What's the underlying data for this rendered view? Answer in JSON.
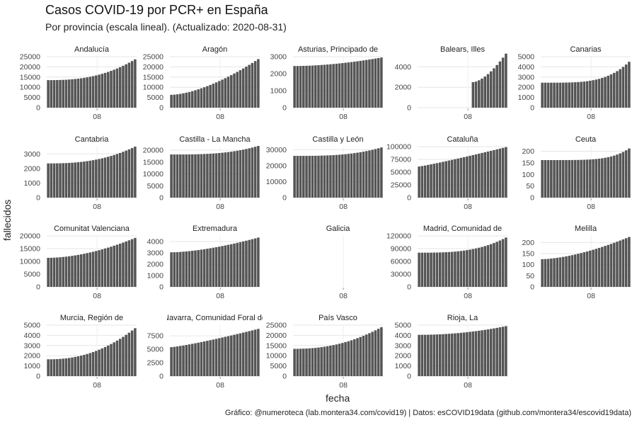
{
  "title": "Casos COVID-19 por PCR+ en España",
  "subtitle": "Por provincia (escala lineal). (Actualizado: 2020-08-31)",
  "caption": "Gráfico: @numeroteca (lab.montera34.com/covid19) | Datos: esCOVID19data (github.com/montera34/escovid19data)",
  "chart_data": {
    "type": "bar",
    "xlabel": "fecha",
    "ylabel": "fallecidos",
    "x_tick_label": "08",
    "bar_color": "#555555",
    "grid": true,
    "panels": [
      {
        "name": "Andalucía",
        "yticks": [
          0,
          5000,
          10000,
          15000,
          20000,
          25000
        ],
        "ylim": [
          0,
          25000
        ],
        "start": 13500,
        "end": 23700,
        "curve": 2.5,
        "empty_days": 0
      },
      {
        "name": "Aragón",
        "yticks": [
          0,
          5000,
          10000,
          15000,
          20000,
          25000
        ],
        "ylim": [
          0,
          25000
        ],
        "start": 6300,
        "end": 23800,
        "curve": 1.6,
        "empty_days": 0
      },
      {
        "name": "Asturias, Principado de",
        "yticks": [
          0,
          1000,
          2000,
          3000
        ],
        "ylim": [
          0,
          3000
        ],
        "start": 2450,
        "end": 2950,
        "curve": 1.8,
        "empty_days": 0
      },
      {
        "name": "Balears, Illes",
        "yticks": [
          0,
          2000,
          4000
        ],
        "ylim": [
          0,
          5000
        ],
        "start": 2500,
        "end": 5300,
        "curve": 1.6,
        "empty_days": 18
      },
      {
        "name": "Canarias",
        "yticks": [
          0,
          1000,
          2000,
          3000,
          4000,
          5000
        ],
        "ylim": [
          0,
          5000
        ],
        "start": 2450,
        "end": 4500,
        "curve": 4.0,
        "empty_days": 0
      },
      {
        "name": "Cantabria",
        "yticks": [
          0,
          1000,
          2000,
          3000
        ],
        "ylim": [
          0,
          3500
        ],
        "start": 2350,
        "end": 3500,
        "curve": 2.5,
        "empty_days": 0
      },
      {
        "name": "Castilla - La Mancha",
        "yticks": [
          0,
          5000,
          10000,
          15000,
          20000
        ],
        "ylim": [
          0,
          21500
        ],
        "start": 18200,
        "end": 21800,
        "curve": 3.0,
        "empty_days": 0
      },
      {
        "name": "Castilla y León",
        "yticks": [
          0,
          10000,
          20000,
          30000
        ],
        "ylim": [
          0,
          32000
        ],
        "start": 26200,
        "end": 31500,
        "curve": 3.0,
        "empty_days": 0
      },
      {
        "name": "Cataluña",
        "yticks": [
          0,
          25000,
          50000,
          75000,
          100000
        ],
        "ylim": [
          0,
          100000
        ],
        "start": 61000,
        "end": 99000,
        "curve": 1.1,
        "empty_days": 0
      },
      {
        "name": "Ceuta",
        "yticks": [
          0,
          50,
          100,
          150,
          200
        ],
        "ylim": [
          0,
          220
        ],
        "start": 162,
        "end": 212,
        "curve": 5.0,
        "empty_days": 0
      },
      {
        "name": "Comunitat Valenciana",
        "yticks": [
          0,
          5000,
          10000,
          15000,
          20000
        ],
        "ylim": [
          0,
          20000
        ],
        "start": 11400,
        "end": 19200,
        "curve": 1.8,
        "empty_days": 0
      },
      {
        "name": "Extremadura",
        "yticks": [
          0,
          1000,
          2000,
          3000,
          4000
        ],
        "ylim": [
          0,
          4500
        ],
        "start": 3050,
        "end": 4350,
        "curve": 1.6,
        "empty_days": 0
      },
      {
        "name": "Galicia",
        "yticks": [],
        "ylim": [
          0,
          1
        ],
        "start": 0,
        "end": 0,
        "curve": 1,
        "empty_days": 30
      },
      {
        "name": "Madrid, Comunidad de",
        "yticks": [
          0,
          30000,
          60000,
          90000,
          120000
        ],
        "ylim": [
          0,
          120000
        ],
        "start": 80500,
        "end": 116000,
        "curve": 3.0,
        "empty_days": 0
      },
      {
        "name": "Melilla",
        "yticks": [
          0,
          50,
          100,
          150,
          200
        ],
        "ylim": [
          0,
          230
        ],
        "start": 125,
        "end": 225,
        "curve": 1.6,
        "empty_days": 0
      },
      {
        "name": "Murcia, Región de",
        "yticks": [
          0,
          1000,
          2000,
          3000,
          4000,
          5000
        ],
        "ylim": [
          0,
          5000
        ],
        "start": 1650,
        "end": 4700,
        "curve": 2.2,
        "empty_days": 0
      },
      {
        "name": "Navarra, Comunidad Foral de",
        "yticks": [
          0,
          2500,
          5000,
          7500
        ],
        "ylim": [
          0,
          9500
        ],
        "start": 5400,
        "end": 8800,
        "curve": 1.2,
        "empty_days": 0
      },
      {
        "name": "País Vasco",
        "yticks": [
          0,
          5000,
          10000,
          15000,
          20000,
          25000
        ],
        "ylim": [
          0,
          25000
        ],
        "start": 13400,
        "end": 24000,
        "curve": 2.2,
        "empty_days": 0
      },
      {
        "name": "Rioja, La",
        "yticks": [
          0,
          1000,
          2000,
          3000,
          4000,
          5000
        ],
        "ylim": [
          0,
          5000
        ],
        "start": 4050,
        "end": 4900,
        "curve": 2.0,
        "empty_days": 0
      }
    ]
  }
}
